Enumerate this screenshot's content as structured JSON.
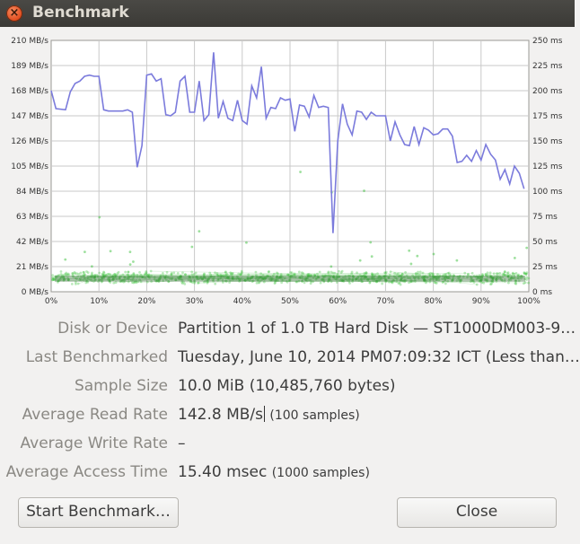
{
  "window": {
    "title": "Benchmark"
  },
  "chart_data": {
    "type": "line",
    "x_unit": "%",
    "xlim": [
      0,
      100
    ],
    "x_ticks": [
      "0%",
      "10%",
      "20%",
      "30%",
      "40%",
      "50%",
      "60%",
      "70%",
      "80%",
      "90%",
      "100%"
    ],
    "y_left_ticks": [
      "0 MB/s",
      "21 MB/s",
      "42 MB/s",
      "63 MB/s",
      "84 MB/s",
      "105 MB/s",
      "126 MB/s",
      "147 MB/s",
      "168 MB/s",
      "189 MB/s",
      "210 MB/s"
    ],
    "y_left_lim": [
      0,
      210
    ],
    "y_right_ticks": [
      "0 ms",
      "25 ms",
      "50 ms",
      "75 ms",
      "100 ms",
      "125 ms",
      "150 ms",
      "175 ms",
      "200 ms",
      "225 ms",
      "250 ms"
    ],
    "y_right_lim": [
      0,
      250
    ],
    "grid": true,
    "series": [
      {
        "color": "#7b7bdc",
        "x": [
          0,
          1,
          3,
          4,
          5,
          6,
          7,
          8,
          9,
          10,
          11,
          12,
          13,
          14,
          15,
          16,
          17,
          18,
          19,
          20,
          21,
          22,
          23,
          24,
          25,
          26,
          27,
          28,
          29,
          30,
          31,
          32,
          33,
          34,
          35,
          36,
          37,
          38,
          39,
          40,
          41,
          42,
          43,
          44,
          45,
          46,
          47,
          48,
          49,
          50,
          51,
          52,
          53,
          54,
          55,
          56,
          57,
          58,
          59,
          60,
          61,
          62,
          63,
          64,
          65,
          66,
          67,
          68,
          69,
          70,
          71,
          72,
          73,
          74,
          75,
          76,
          77,
          78,
          79,
          80,
          81,
          82,
          83,
          84,
          85,
          86,
          87,
          88,
          89,
          90,
          91,
          92,
          93,
          94,
          95,
          96,
          97,
          98,
          99
        ],
        "values": [
          168,
          153,
          152,
          167,
          174,
          176,
          180,
          181,
          180,
          180,
          152,
          151,
          151,
          151,
          151,
          152,
          150,
          104,
          122,
          181,
          182,
          176,
          178,
          148,
          147,
          150,
          176,
          180,
          150,
          150,
          176,
          143,
          148,
          200,
          145,
          159,
          145,
          143,
          160,
          143,
          140,
          172,
          162,
          188,
          145,
          154,
          153,
          162,
          160,
          161,
          134,
          156,
          155,
          146,
          164,
          154,
          155,
          154,
          49,
          126,
          157,
          140,
          131,
          151,
          150,
          144,
          150,
          147,
          147,
          147,
          126,
          142,
          131,
          123,
          122,
          138,
          123,
          137,
          135,
          131,
          132,
          136,
          136,
          130,
          108,
          109,
          114,
          109,
          118,
          110,
          123,
          115,
          110,
          94,
          102,
          90,
          105,
          99,
          86
        ]
      }
    ],
    "access_time_color": "#3ec23e",
    "access_time_samples": 1000
  },
  "info": {
    "device_label": "Disk or Device",
    "device_value": "Partition 1 of 1.0 TB Hard Disk — ST1000DM003-9…",
    "last_label": "Last Benchmarked",
    "last_value": "Tuesday, June 10, 2014 PM07:09:32 ICT (Less than…",
    "sample_label": "Sample Size",
    "sample_value": "10.0 MiB (10,485,760 bytes)",
    "read_label": "Average Read Rate",
    "read_value": "142.8 MB/s",
    "read_samples": "(100 samples)",
    "write_label": "Average Write Rate",
    "write_value": "–",
    "access_label": "Average Access Time",
    "access_value": "15.40 msec",
    "access_samples": "(1000 samples)"
  },
  "buttons": {
    "start_label": "Start Benchmark…",
    "close_label": "Close"
  }
}
